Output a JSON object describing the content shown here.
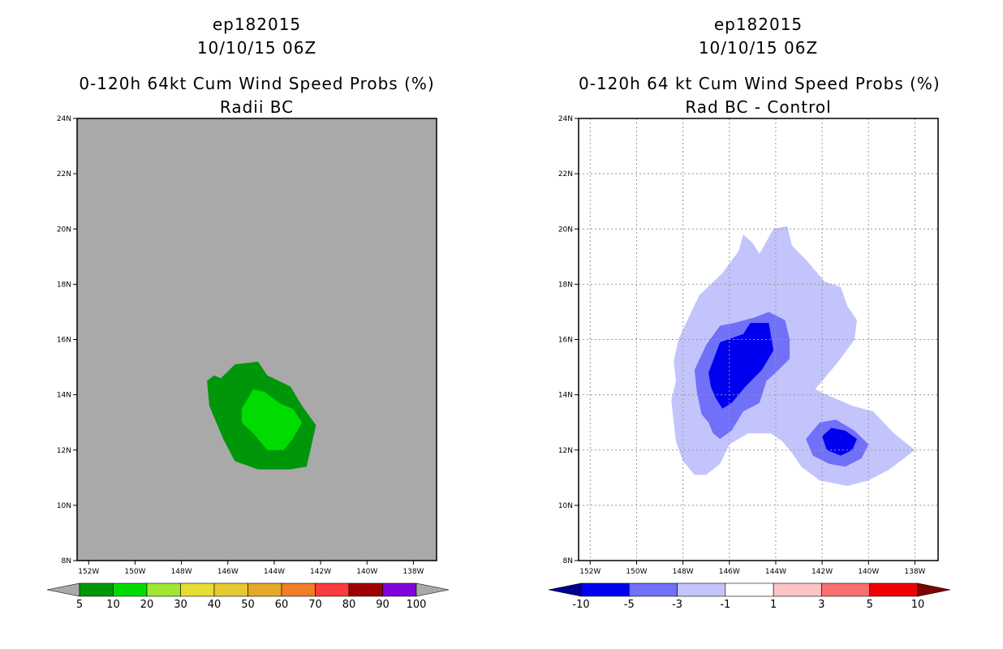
{
  "chart_data": [
    {
      "type": "contour-map",
      "storm_id": "ep182015",
      "valid_time": "10/10/15 06Z",
      "title": "0-120h 64kt Cum Wind Speed Probs (%)",
      "subtitle": "Radii BC",
      "background_color": "#a9a9a9",
      "grid": false,
      "x_tick_labels": [
        "152W",
        "150W",
        "148W",
        "146W",
        "144W",
        "142W",
        "140W",
        "138W"
      ],
      "x_ticks_lon": [
        -152,
        -150,
        -148,
        -146,
        -144,
        -142,
        -140,
        -138
      ],
      "y_tick_labels": [
        "8N",
        "10N",
        "12N",
        "14N",
        "16N",
        "18N",
        "20N",
        "22N",
        "24N"
      ],
      "y_ticks_lat": [
        8,
        10,
        12,
        14,
        16,
        18,
        20,
        22,
        24
      ],
      "lon_range": [
        -152.5,
        -137
      ],
      "lat_range": [
        8,
        24
      ],
      "colorbar": {
        "labels": [
          "5",
          "10",
          "20",
          "30",
          "40",
          "50",
          "60",
          "70",
          "80",
          "90",
          "100"
        ],
        "colors": [
          "#00960a",
          "#00dc00",
          "#a0e632",
          "#e6dc32",
          "#e6c832",
          "#e6a828",
          "#f07d28",
          "#fa3c3c",
          "#a00000",
          "#8200dc"
        ],
        "end_colors": [
          "#a9a9a9",
          "#a9a9a9"
        ]
      },
      "contours": [
        {
          "level": "5-10",
          "color": "#00960a",
          "points": [
            [
              -146.9,
              14.5
            ],
            [
              -146.6,
              14.7
            ],
            [
              -146.3,
              14.6
            ],
            [
              -145.7,
              15.1
            ],
            [
              -144.7,
              15.2
            ],
            [
              -144.3,
              14.7
            ],
            [
              -143.3,
              14.3
            ],
            [
              -142.8,
              13.6
            ],
            [
              -142.2,
              12.9
            ],
            [
              -142.6,
              11.4
            ],
            [
              -143.3,
              11.3
            ],
            [
              -144.7,
              11.3
            ],
            [
              -145.7,
              11.6
            ],
            [
              -146.2,
              12.4
            ],
            [
              -146.8,
              13.6
            ]
          ]
        },
        {
          "level": "10-20",
          "color": "#00dc00",
          "points": [
            [
              -145.4,
              13.5
            ],
            [
              -144.9,
              14.2
            ],
            [
              -144.4,
              14.1
            ],
            [
              -143.8,
              13.7
            ],
            [
              -143.2,
              13.5
            ],
            [
              -142.8,
              13.0
            ],
            [
              -143.2,
              12.4
            ],
            [
              -143.6,
              12.0
            ],
            [
              -144.3,
              12.0
            ],
            [
              -144.9,
              12.6
            ],
            [
              -145.4,
              13.0
            ]
          ]
        }
      ]
    },
    {
      "type": "contour-map",
      "storm_id": "ep182015",
      "valid_time": "10/10/15 06Z",
      "title": "0-120h 64 kt Cum Wind Speed Probs (%)",
      "subtitle": "Rad BC - Control",
      "background_color": "#ffffff",
      "grid": true,
      "x_tick_labels": [
        "152W",
        "150W",
        "148W",
        "146W",
        "144W",
        "142W",
        "140W",
        "138W"
      ],
      "x_ticks_lon": [
        -152,
        -150,
        -148,
        -146,
        -144,
        -142,
        -140,
        -138
      ],
      "y_tick_labels": [
        "8N",
        "10N",
        "12N",
        "14N",
        "16N",
        "18N",
        "20N",
        "22N",
        "24N"
      ],
      "y_ticks_lat": [
        8,
        10,
        12,
        14,
        16,
        18,
        20,
        22,
        24
      ],
      "lon_range": [
        -152.5,
        -137
      ],
      "lat_range": [
        8,
        24
      ],
      "colorbar": {
        "labels": [
          "-10",
          "-5",
          "-3",
          "-1",
          "1",
          "3",
          "5",
          "10"
        ],
        "colors": [
          "#0000f0",
          "#7070f8",
          "#c4c4fc",
          "#ffffff",
          "#fcc4c4",
          "#f87070",
          "#f00000"
        ],
        "end_colors": [
          "#000090",
          "#800000"
        ]
      },
      "contours": [
        {
          "level": "-3 to -1",
          "color": "#c4c4fc",
          "points": [
            [
              -148.2,
              16.0
            ],
            [
              -147.3,
              17.6
            ],
            [
              -146.3,
              18.4
            ],
            [
              -145.6,
              19.2
            ],
            [
              -145.4,
              19.8
            ],
            [
              -145.0,
              19.5
            ],
            [
              -144.7,
              19.1
            ],
            [
              -144.1,
              20.0
            ],
            [
              -143.5,
              20.1
            ],
            [
              -143.3,
              19.4
            ],
            [
              -142.6,
              18.8
            ],
            [
              -141.9,
              18.1
            ],
            [
              -141.2,
              17.9
            ],
            [
              -140.9,
              17.2
            ],
            [
              -140.5,
              16.7
            ],
            [
              -140.6,
              16.0
            ],
            [
              -141.3,
              15.2
            ],
            [
              -141.9,
              14.6
            ],
            [
              -142.3,
              14.2
            ],
            [
              -141.8,
              14.0
            ],
            [
              -140.7,
              13.6
            ],
            [
              -139.8,
              13.4
            ],
            [
              -138.9,
              12.6
            ],
            [
              -138.0,
              12.0
            ],
            [
              -139.1,
              11.3
            ],
            [
              -140.0,
              10.9
            ],
            [
              -140.9,
              10.7
            ],
            [
              -142.1,
              10.9
            ],
            [
              -142.9,
              11.4
            ],
            [
              -143.3,
              11.9
            ],
            [
              -143.7,
              12.3
            ],
            [
              -144.2,
              12.6
            ],
            [
              -145.2,
              12.6
            ],
            [
              -146.0,
              12.2
            ],
            [
              -146.4,
              11.5
            ],
            [
              -147.0,
              11.1
            ],
            [
              -147.5,
              11.1
            ],
            [
              -148.0,
              11.6
            ],
            [
              -148.3,
              12.3
            ],
            [
              -148.4,
              13.0
            ],
            [
              -148.5,
              13.8
            ],
            [
              -148.3,
              14.5
            ],
            [
              -148.4,
              15.2
            ]
          ]
        },
        {
          "level": "-5 to -3",
          "color": "#7070f8",
          "points": [
            [
              -147.5,
              14.9
            ],
            [
              -147.0,
              15.8
            ],
            [
              -146.4,
              16.5
            ],
            [
              -145.8,
              16.6
            ],
            [
              -144.9,
              16.8
            ],
            [
              -144.3,
              17.0
            ],
            [
              -143.6,
              16.7
            ],
            [
              -143.4,
              16.0
            ],
            [
              -143.4,
              15.3
            ],
            [
              -144.0,
              14.8
            ],
            [
              -144.4,
              14.5
            ],
            [
              -144.7,
              13.7
            ],
            [
              -145.4,
              13.4
            ],
            [
              -145.9,
              12.7
            ],
            [
              -146.4,
              12.4
            ],
            [
              -146.7,
              12.6
            ],
            [
              -146.9,
              13.0
            ],
            [
              -147.2,
              13.3
            ],
            [
              -147.4,
              14.1
            ]
          ]
        },
        {
          "level": "-5 to -3",
          "color": "#7070f8",
          "points": [
            [
              -142.7,
              12.4
            ],
            [
              -142.1,
              13.0
            ],
            [
              -141.4,
              13.1
            ],
            [
              -140.6,
              12.7
            ],
            [
              -140.0,
              12.2
            ],
            [
              -140.3,
              11.7
            ],
            [
              -141.0,
              11.4
            ],
            [
              -141.7,
              11.5
            ],
            [
              -142.4,
              11.8
            ]
          ]
        },
        {
          "level": "-10 to -5",
          "color": "#0000f0",
          "points": [
            [
              -146.9,
              14.8
            ],
            [
              -146.4,
              15.9
            ],
            [
              -145.4,
              16.2
            ],
            [
              -145.1,
              16.6
            ],
            [
              -144.3,
              16.6
            ],
            [
              -144.1,
              15.6
            ],
            [
              -144.6,
              14.9
            ],
            [
              -145.3,
              14.3
            ],
            [
              -145.9,
              13.7
            ],
            [
              -146.3,
              13.5
            ],
            [
              -146.6,
              13.9
            ],
            [
              -146.8,
              14.3
            ]
          ]
        },
        {
          "level": "-10 to -5",
          "color": "#0000f0",
          "points": [
            [
              -142.0,
              12.5
            ],
            [
              -141.6,
              12.8
            ],
            [
              -141.0,
              12.7
            ],
            [
              -140.5,
              12.4
            ],
            [
              -140.7,
              12.0
            ],
            [
              -141.2,
              11.8
            ],
            [
              -141.8,
              12.0
            ]
          ]
        }
      ]
    }
  ]
}
